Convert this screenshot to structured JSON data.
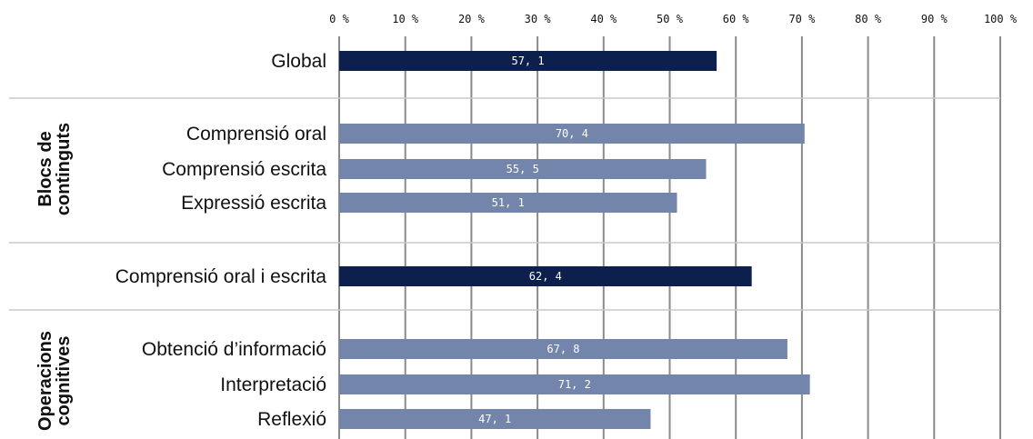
{
  "chart_data": {
    "type": "bar",
    "orientation": "horizontal",
    "xlim": [
      0,
      100
    ],
    "x_ticks": [
      "0 %",
      "10 %",
      "20 %",
      "30 %",
      "40 %",
      "50 %",
      "60 %",
      "70 %",
      "80 %",
      "90 %",
      "100 %"
    ],
    "grid": true,
    "categories": [
      "Global",
      "Comprensió oral",
      "Comprensió escrita",
      "Expressió escrita",
      "Comprensió oral i escrita",
      "Obtenció d’informació",
      "Interpretació",
      "Reflexió"
    ],
    "values": [
      57.1,
      70.4,
      55.5,
      51.1,
      62.4,
      67.8,
      71.2,
      47.1
    ],
    "value_labels": [
      "57, 1",
      "70, 4",
      "55, 5",
      "51, 1",
      "62, 4",
      "67, 8",
      "71, 2",
      "47, 1"
    ],
    "groups": [
      {
        "label_lines": [
          "Blocs de",
          "continguts"
        ],
        "members": [
          "Comprensió oral",
          "Comprensió escrita",
          "Expressió escrita"
        ]
      },
      {
        "label_lines": [
          "Operacions",
          "cognitives"
        ],
        "members": [
          "Obtenció d’informació",
          "Interpretació",
          "Reflexió"
        ]
      }
    ],
    "colors": {
      "summary_bar": "#0d1f4d",
      "detail_bar": "#7385ab",
      "grid": "#8a8a8a",
      "separator": "#c8c8c8"
    },
    "summary_categories": [
      "Global",
      "Comprensió oral i escrita"
    ]
  }
}
